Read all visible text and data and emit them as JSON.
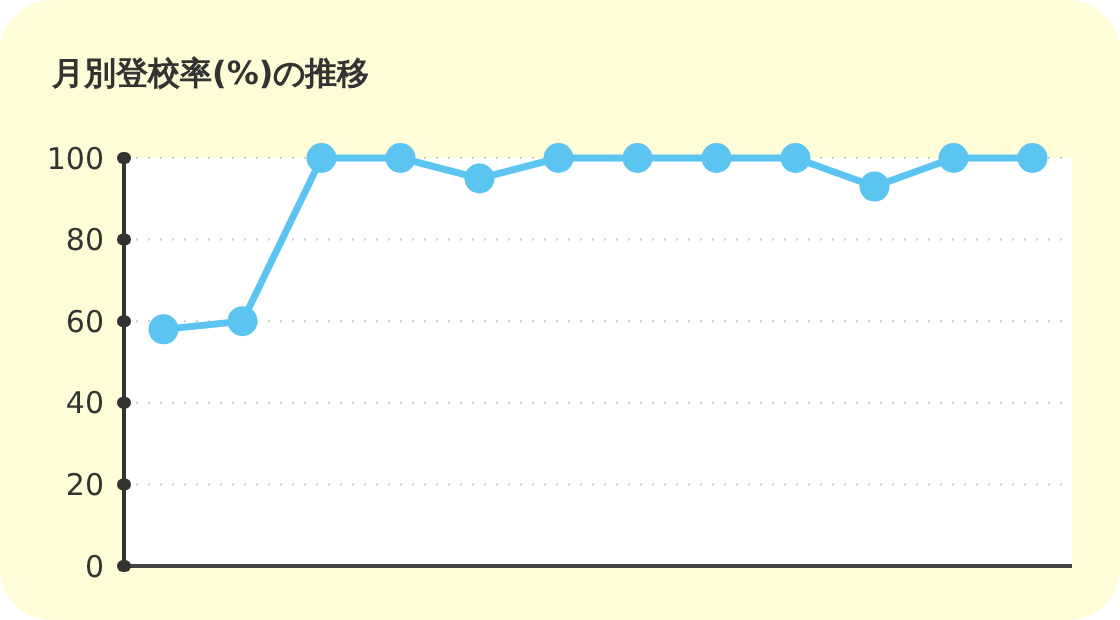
{
  "chart_data": {
    "type": "line",
    "title": "月別登校率(%)の推移",
    "categories": [
      null,
      null,
      null,
      null,
      null,
      null,
      null,
      null,
      null,
      null,
      null,
      null
    ],
    "series": [
      {
        "color": "#5bc4f1",
        "values": [
          58,
          60,
          100,
          100,
          95,
          100,
          100,
          100,
          100,
          93,
          100,
          100
        ]
      }
    ],
    "ylim": [
      0,
      100
    ],
    "yticks": [
      0,
      20,
      40,
      60,
      80,
      100
    ],
    "grid": "y",
    "marker": "circle",
    "line_style": "solid"
  }
}
